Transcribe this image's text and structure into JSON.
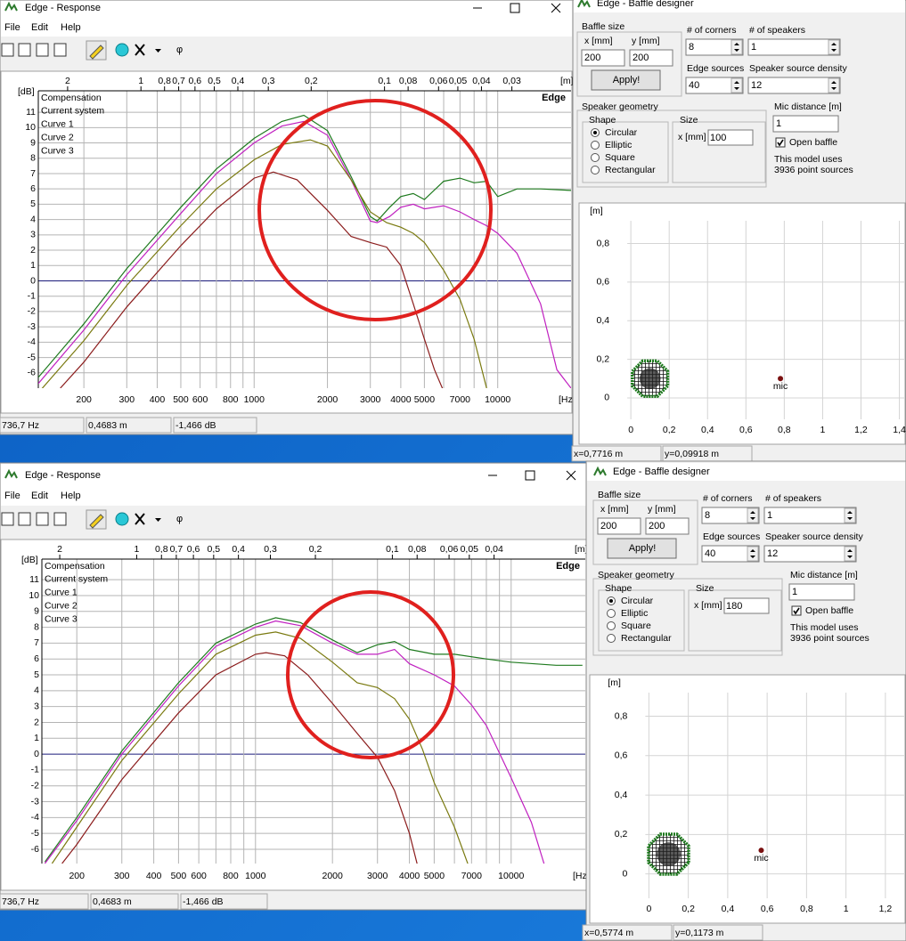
{
  "panels": [
    {
      "response": {
        "title": "Edge - Response",
        "menu": [
          "File",
          "Edit",
          "Help"
        ],
        "toolbar_phi": "φ",
        "chart": {
          "type": "line",
          "y_unit": "[dB]",
          "x_unit": "[Hz]",
          "top_unit": "[m]",
          "watermark": "Edge",
          "log_x": true,
          "grid": true,
          "xlim": [
            130,
            20000
          ],
          "ylim": [
            -7,
            12.4
          ],
          "yticks": [
            11,
            10,
            9,
            8,
            7,
            6,
            5,
            4,
            3,
            2,
            1,
            0,
            -1,
            -2,
            -3,
            -4,
            -5,
            -6
          ],
          "xticks": [
            200,
            300,
            400,
            500,
            600,
            800,
            1000,
            2000,
            3000,
            4000,
            5000,
            7000,
            10000
          ],
          "x_minor_grid": [
            700,
            900,
            6000,
            8000,
            9000
          ],
          "top_ticks": [
            2,
            1,
            {
              "value": 0.8,
              "label": "0,8"
            },
            {
              "value": 0.7,
              "label": "0,7"
            },
            {
              "value": 0.6,
              "label": "0,6"
            },
            {
              "value": 0.5,
              "label": "0,5"
            },
            {
              "value": 0.4,
              "label": "0,4"
            },
            {
              "value": 0.3,
              "label": "0,3"
            },
            {
              "value": 0.2,
              "label": "0,2"
            },
            {
              "value": 0.1,
              "label": "0,1"
            },
            {
              "value": 0.08,
              "label": "0,08"
            },
            {
              "value": 0.06,
              "label": "0,06"
            },
            {
              "value": 0.05,
              "label": "0,05"
            },
            {
              "value": 0.04,
              "label": "0,04"
            },
            {
              "value": 0.03,
              "label": "0,03"
            }
          ],
          "series": [
            {
              "name": "Compensation",
              "color": "#1a1a9a"
            },
            {
              "name": "Current system",
              "color": "#8b1c1c",
              "x": [
                160,
                200,
                300,
                500,
                700,
                1000,
                1200,
                1500,
                2000,
                2500,
                3000,
                3500,
                4000,
                4500,
                5000,
                5500,
                6000
              ],
              "values": [
                -7,
                -5.3,
                -1.7,
                2.3,
                4.7,
                6.7,
                7.1,
                6.6,
                4.6,
                2.9,
                2.5,
                2.2,
                1,
                -1.5,
                -3.8,
                -5.8,
                -7.2
              ]
            },
            {
              "name": "Curve 1",
              "color": "#1e7a1e",
              "x": [
                130,
                200,
                300,
                500,
                700,
                1000,
                1300,
                1600,
                2000,
                2500,
                3000,
                3200,
                3600,
                4000,
                4500,
                5000,
                6000,
                7000,
                8000,
                9000,
                10000,
                12000,
                15000,
                20000
              ],
              "values": [
                -6.3,
                -2.8,
                0.8,
                4.8,
                7.3,
                9.3,
                10.4,
                10.8,
                9.8,
                6.8,
                4.2,
                3.9,
                4.8,
                5.5,
                5.7,
                5.3,
                6.5,
                6.7,
                6.4,
                6.5,
                5.5,
                6,
                6,
                5.9
              ]
            },
            {
              "name": "Curve 2",
              "color": "#c020c0",
              "x": [
                130,
                200,
                300,
                500,
                700,
                1000,
                1300,
                1600,
                2000,
                2500,
                3000,
                3200,
                3600,
                4000,
                4500,
                5000,
                6000,
                7000,
                8000,
                9000,
                10000,
                12000,
                15000,
                17500,
                20000
              ],
              "values": [
                -6.7,
                -3.2,
                0.4,
                4.4,
                7,
                9,
                10.1,
                10.4,
                9.5,
                6.6,
                3.9,
                3.8,
                4.2,
                4.8,
                5,
                4.7,
                4.9,
                4.5,
                4,
                3.6,
                3.1,
                1.8,
                -1.5,
                -5.8,
                -7
              ]
            },
            {
              "name": "Curve 3",
              "color": "#7a7a10",
              "x": [
                130,
                200,
                300,
                500,
                700,
                1000,
                1300,
                1700,
                2000,
                2500,
                3000,
                3500,
                4000,
                4500,
                5000,
                6000,
                7000,
                8000,
                9000
              ],
              "values": [
                -7.3,
                -3.9,
                -0.3,
                3.6,
                6,
                7.9,
                8.9,
                9.2,
                8.8,
                6.6,
                4.5,
                3.8,
                3.5,
                3.1,
                2.5,
                0.7,
                -1.2,
                -3.8,
                -7
              ]
            }
          ]
        },
        "status": [
          "736,7 Hz",
          "0,4683 m",
          "-1,466 dB"
        ]
      },
      "baffle": {
        "title": "Edge - Baffle designer",
        "baffle_size": {
          "label": "Baffle size",
          "x_label": "x [mm]",
          "y_label": "y [mm]",
          "x": "200",
          "y": "200",
          "apply": "Apply!"
        },
        "corners": {
          "label": "# of corners",
          "value": "8"
        },
        "speakers": {
          "label": "# of speakers",
          "value": "1"
        },
        "edge_sources": {
          "label": "Edge sources",
          "value": "40"
        },
        "density": {
          "label": "Speaker source density",
          "value": "12"
        },
        "geometry": {
          "label": "Speaker geometry",
          "shape_label": "Shape",
          "shapes": [
            "Circular",
            "Elliptic",
            "Square",
            "Rectangular"
          ],
          "selected": 0,
          "size_label": "Size",
          "size_x_label": "x [mm]",
          "size_x": "100"
        },
        "mic_distance": {
          "label": "Mic distance [m]",
          "value": "1"
        },
        "open_baffle": {
          "label": "Open baffle",
          "checked": true
        },
        "model_note": [
          "This model uses",
          "3936 point sources"
        ],
        "plot": {
          "y_unit": "[m]",
          "xlim": [
            -0.27,
            1.43
          ],
          "ylim": [
            -0.24,
            1.01
          ],
          "xticks": [
            0,
            {
              "value": 0.2,
              "label": "0,2"
            },
            {
              "value": 0.4,
              "label": "0,4"
            },
            {
              "value": 0.6,
              "label": "0,6"
            },
            {
              "value": 0.8,
              "label": "0,8"
            },
            1,
            {
              "value": 1.2,
              "label": "1,2"
            },
            {
              "value": 1.4,
              "label": "1,4"
            }
          ],
          "yticks": [
            0,
            {
              "value": 0.2,
              "label": "0,2"
            },
            {
              "value": 0.4,
              "label": "0,4"
            },
            {
              "value": 0.6,
              "label": "0,6"
            },
            {
              "value": 0.8,
              "label": "0,8"
            }
          ],
          "baffle": {
            "x": 0.1,
            "y": 0.1,
            "r": 0.1
          },
          "mic": {
            "x": 0.78,
            "y": 0.1,
            "label": "mic"
          }
        },
        "status": [
          "x=0,7716 m",
          "y=0,09918 m"
        ]
      }
    },
    {
      "response": {
        "title": "Edge - Response",
        "menu": [
          "File",
          "Edit",
          "Help"
        ],
        "toolbar_phi": "φ",
        "chart": {
          "type": "line",
          "y_unit": "[dB]",
          "x_unit": "[Hz]",
          "top_unit": "[m]",
          "watermark": "Edge",
          "log_x": true,
          "grid": true,
          "xlim": [
            146,
            19500
          ],
          "ylim": [
            -6.9,
            12.3
          ],
          "yticks": [
            11,
            10,
            9,
            8,
            7,
            6,
            5,
            4,
            3,
            2,
            1,
            0,
            -1,
            -2,
            -3,
            -4,
            -5,
            -6
          ],
          "xticks": [
            200,
            300,
            400,
            500,
            600,
            800,
            1000,
            2000,
            3000,
            4000,
            5000,
            7000,
            10000
          ],
          "x_minor_grid": [
            700,
            900,
            6000,
            8000,
            9000
          ],
          "top_ticks": [
            2,
            1,
            {
              "value": 0.8,
              "label": "0,8"
            },
            {
              "value": 0.7,
              "label": "0,7"
            },
            {
              "value": 0.6,
              "label": "0,6"
            },
            {
              "value": 0.5,
              "label": "0,5"
            },
            {
              "value": 0.4,
              "label": "0,4"
            },
            {
              "value": 0.3,
              "label": "0,3"
            },
            {
              "value": 0.2,
              "label": "0,2"
            },
            {
              "value": 0.1,
              "label": "0,1"
            },
            {
              "value": 0.08,
              "label": "0,08"
            },
            {
              "value": 0.06,
              "label": "0,06"
            },
            {
              "value": 0.05,
              "label": "0,05"
            },
            {
              "value": 0.04,
              "label": "0,04"
            }
          ],
          "series": [
            {
              "name": "Compensation",
              "color": "#1a1a9a"
            },
            {
              "name": "Current system",
              "color": "#8b1c1c",
              "x": [
                175,
                200,
                300,
                500,
                700,
                1000,
                1100,
                1300,
                1600,
                2000,
                2500,
                3000,
                3500,
                4000,
                4300
              ],
              "values": [
                -6.9,
                -5.7,
                -1.6,
                2.6,
                5,
                6.3,
                6.4,
                6.2,
                5,
                3.2,
                1.3,
                -0.2,
                -2.3,
                -5,
                -7
              ]
            },
            {
              "name": "Curve 1",
              "color": "#1e7a1e",
              "x": [
                150,
                200,
                300,
                500,
                700,
                1000,
                1200,
                1500,
                2000,
                2500,
                3000,
                3500,
                4000,
                5000,
                6000,
                8000,
                10000,
                15000,
                19000
              ],
              "values": [
                -6.8,
                -4,
                0.2,
                4.5,
                7,
                8.2,
                8.6,
                8.3,
                7.2,
                6.4,
                6.9,
                7.1,
                6.6,
                6.3,
                6.3,
                6,
                5.8,
                5.6,
                5.6
              ]
            },
            {
              "name": "Curve 2",
              "color": "#c020c0",
              "x": [
                150,
                200,
                300,
                500,
                700,
                1000,
                1200,
                1500,
                2000,
                2500,
                3000,
                3500,
                4000,
                5000,
                6000,
                7000,
                8000,
                10000,
                12000,
                13500
              ],
              "values": [
                -6.9,
                -4.2,
                0,
                4.3,
                6.8,
                8,
                8.4,
                8.1,
                7,
                6.3,
                6.3,
                6.6,
                5.7,
                5,
                4.3,
                3.1,
                1.8,
                -1.5,
                -4.3,
                -7
              ]
            },
            {
              "name": "Curve 3",
              "color": "#7a7a10",
              "x": [
                160,
                200,
                300,
                500,
                700,
                1000,
                1200,
                1500,
                2000,
                2500,
                3000,
                3500,
                4000,
                4500,
                5000,
                6000,
                6800
              ],
              "values": [
                -6.9,
                -4.6,
                -0.4,
                3.8,
                6.3,
                7.5,
                7.7,
                7.3,
                5.8,
                4.5,
                4.2,
                3.5,
                2.2,
                0.3,
                -1.8,
                -4.6,
                -7
              ]
            }
          ]
        },
        "status": [
          "736,7 Hz",
          "0,4683 m",
          "-1,466 dB"
        ]
      },
      "baffle": {
        "title": "Edge - Baffle designer",
        "baffle_size": {
          "label": "Baffle size",
          "x_label": "x [mm]",
          "y_label": "y [mm]",
          "x": "200",
          "y": "200",
          "apply": "Apply!"
        },
        "corners": {
          "label": "# of corners",
          "value": "8"
        },
        "speakers": {
          "label": "# of speakers",
          "value": "1"
        },
        "edge_sources": {
          "label": "Edge sources",
          "value": "40"
        },
        "density": {
          "label": "Speaker source density",
          "value": "12"
        },
        "geometry": {
          "label": "Speaker geometry",
          "shape_label": "Shape",
          "shapes": [
            "Circular",
            "Elliptic",
            "Square",
            "Rectangular"
          ],
          "selected": 0,
          "size_label": "Size",
          "size_x_label": "x [mm]",
          "size_x": "180"
        },
        "mic_distance": {
          "label": "Mic distance [m]",
          "value": "1"
        },
        "open_baffle": {
          "label": "Open baffle",
          "checked": true
        },
        "model_note": [
          "This model uses",
          "3936 point sources"
        ],
        "plot": {
          "y_unit": "[m]",
          "xlim": [
            -0.3,
            1.3
          ],
          "ylim": [
            -0.25,
            1.01
          ],
          "xticks": [
            0,
            {
              "value": 0.2,
              "label": "0,2"
            },
            {
              "value": 0.4,
              "label": "0,4"
            },
            {
              "value": 0.6,
              "label": "0,6"
            },
            {
              "value": 0.8,
              "label": "0,8"
            },
            1,
            {
              "value": 1.2,
              "label": "1,2"
            }
          ],
          "yticks": [
            0,
            {
              "value": 0.2,
              "label": "0,2"
            },
            {
              "value": 0.4,
              "label": "0,4"
            },
            {
              "value": 0.6,
              "label": "0,6"
            },
            {
              "value": 0.8,
              "label": "0,8"
            }
          ],
          "baffle": {
            "x": 0.1,
            "y": 0.1,
            "r": 0.11
          },
          "mic": {
            "x": 0.57,
            "y": 0.12,
            "label": "mic"
          }
        },
        "status": [
          "x=0,5774 m",
          "y=0,1173 m"
        ]
      }
    }
  ]
}
